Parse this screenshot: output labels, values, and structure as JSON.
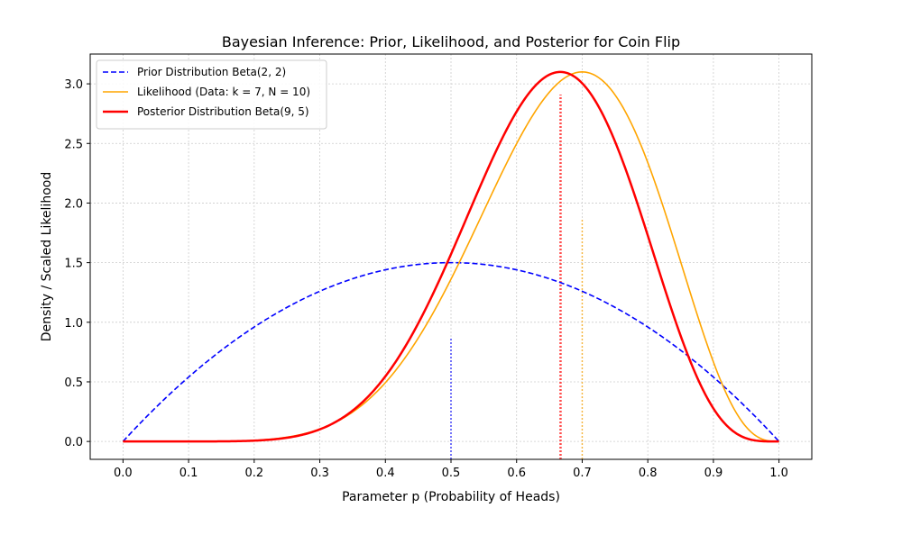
{
  "chart_data": {
    "type": "line",
    "title": "Bayesian Inference: Prior, Likelihood, and Posterior for Coin Flip",
    "xlabel": "Parameter p (Probability of Heads)",
    "ylabel": "Density / Scaled Likelihood",
    "xlim": [
      -0.05,
      1.05
    ],
    "ylim": [
      -0.15,
      3.25
    ],
    "xticks": [
      "0.0",
      "0.1",
      "0.2",
      "0.3",
      "0.4",
      "0.5",
      "0.6",
      "0.7",
      "0.8",
      "0.9",
      "1.0"
    ],
    "yticks": [
      "0.0",
      "0.5",
      "1.0",
      "1.5",
      "2.0",
      "2.5",
      "3.0"
    ],
    "grid": true,
    "legend_position": "top-left",
    "series": [
      {
        "name": "Prior Distribution Beta(2, 2)",
        "color": "#0000ff",
        "style": "dashed",
        "function": "beta",
        "a": 2,
        "b": 2
      },
      {
        "name": "Likelihood (Data: k = 7, N = 10)",
        "color": "#ffa500",
        "style": "solid",
        "function": "binomial_likelihood_scaled",
        "k": 7,
        "n": 10,
        "peak": 3.1
      },
      {
        "name": "Posterior Distribution Beta(9, 5)",
        "color": "#ff0000",
        "style": "solid",
        "function": "beta",
        "a": 9,
        "b": 5
      }
    ],
    "vlines": [
      {
        "x": 0.5,
        "top": 0.87,
        "color": "#0000ff"
      },
      {
        "x": 0.667,
        "top": 2.91,
        "color": "#ff0000"
      },
      {
        "x": 0.7,
        "top": 1.87,
        "color": "#ffa500"
      }
    ]
  }
}
